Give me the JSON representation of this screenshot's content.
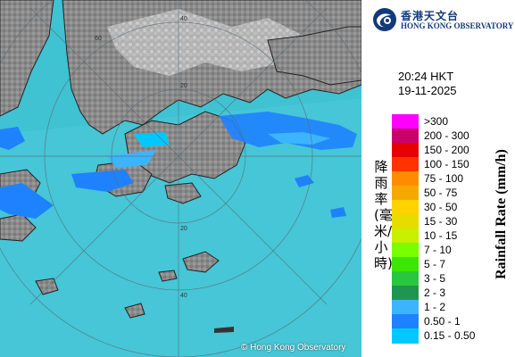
{
  "map": {
    "copyright": "© Hong Kong Observatory",
    "range_ring_labels": [
      "20",
      "40",
      "60",
      "20",
      "40",
      "60"
    ]
  },
  "logo": {
    "name_zh": "香港天文台",
    "name_en": "HONG KONG OBSERVATORY",
    "icon": "observatory-logo-icon"
  },
  "timestamp": {
    "time": "20:24 HKT",
    "date": "19-11-2025"
  },
  "legend": {
    "title_zh": "降雨率(毫米/小時)",
    "title_en": "Rainfall Rate (mm/h)",
    "items": [
      {
        "label": ">300",
        "color": "#ff00ff"
      },
      {
        "label": "200 - 300",
        "color": "#c8006e"
      },
      {
        "label": "150 - 200",
        "color": "#e60000"
      },
      {
        "label": "100 - 150",
        "color": "#ff3200"
      },
      {
        "label": "75 - 100",
        "color": "#ff8c00"
      },
      {
        "label": "50 - 75",
        "color": "#f5a900"
      },
      {
        "label": "30 - 50",
        "color": "#ffd200"
      },
      {
        "label": "15 - 30",
        "color": "#e6dc00"
      },
      {
        "label": "10 - 15",
        "color": "#c8f000"
      },
      {
        "label": "7 - 10",
        "color": "#78ff00"
      },
      {
        "label": "5 - 7",
        "color": "#3ce600"
      },
      {
        "label": "3 - 5",
        "color": "#28c83c"
      },
      {
        "label": "2 - 3",
        "color": "#1e9650"
      },
      {
        "label": "1 - 2",
        "color": "#3cb4ff"
      },
      {
        "label": "0.50 - 1",
        "color": "#1e82ff"
      },
      {
        "label": "0.15 - 0.50",
        "color": "#00c8ff"
      }
    ]
  }
}
